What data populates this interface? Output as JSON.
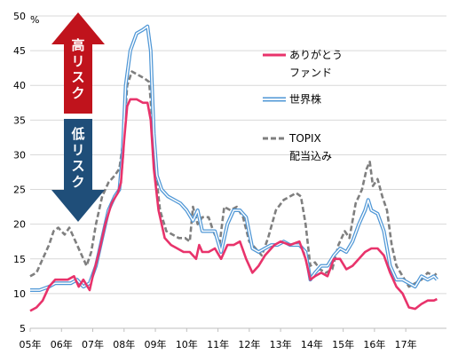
{
  "chart_data": {
    "type": "line",
    "y_unit": "%",
    "ylim": [
      5,
      50
    ],
    "y_ticks": [
      "5",
      "10",
      "15",
      "20",
      "25",
      "30",
      "35",
      "40",
      "45",
      "50"
    ],
    "xlim": [
      2005.0,
      2018.3
    ],
    "x_ticks": [
      {
        "label": "05年",
        "x": 2005
      },
      {
        "label": "06年",
        "x": 2006
      },
      {
        "label": "07年",
        "x": 2007
      },
      {
        "label": "08年",
        "x": 2008
      },
      {
        "label": "09年",
        "x": 2009
      },
      {
        "label": "10年",
        "x": 2010
      },
      {
        "label": "11年",
        "x": 2011
      },
      {
        "label": "12年",
        "x": 2012
      },
      {
        "label": "13年",
        "x": 2013
      },
      {
        "label": "14年",
        "x": 2014
      },
      {
        "label": "15年",
        "x": 2015
      },
      {
        "label": "16年",
        "x": 2016
      },
      {
        "label": "17年",
        "x": 2017
      }
    ],
    "grid": "horizontal",
    "legend_position": "right",
    "arrow_labels": {
      "high": "高リスク",
      "low": "低リスク"
    },
    "series": [
      {
        "name": "ありがとうファンド",
        "legend_lines": [
          "ありがとう",
          "ファンド"
        ],
        "style": "solid",
        "color": "#e8336b",
        "points": [
          [
            2005.0,
            7.5
          ],
          [
            2005.2,
            8.0
          ],
          [
            2005.4,
            9.0
          ],
          [
            2005.6,
            11.0
          ],
          [
            2005.8,
            12.0
          ],
          [
            2006.0,
            12.0
          ],
          [
            2006.2,
            12.0
          ],
          [
            2006.4,
            12.5
          ],
          [
            2006.55,
            11.0
          ],
          [
            2006.7,
            12.0
          ],
          [
            2006.9,
            10.5
          ],
          [
            2007.0,
            12.5
          ],
          [
            2007.2,
            16.0
          ],
          [
            2007.4,
            20.0
          ],
          [
            2007.6,
            23.0
          ],
          [
            2007.8,
            24.5
          ],
          [
            2007.9,
            26.0
          ],
          [
            2008.0,
            32.0
          ],
          [
            2008.1,
            37.0
          ],
          [
            2008.2,
            38.0
          ],
          [
            2008.4,
            38.0
          ],
          [
            2008.6,
            37.5
          ],
          [
            2008.75,
            37.5
          ],
          [
            2008.85,
            35.0
          ],
          [
            2008.95,
            28.0
          ],
          [
            2009.1,
            22.0
          ],
          [
            2009.3,
            18.0
          ],
          [
            2009.5,
            17.0
          ],
          [
            2009.7,
            16.5
          ],
          [
            2009.9,
            16.0
          ],
          [
            2010.1,
            16.0
          ],
          [
            2010.3,
            15.0
          ],
          [
            2010.4,
            17.0
          ],
          [
            2010.5,
            16.0
          ],
          [
            2010.7,
            16.0
          ],
          [
            2010.9,
            16.5
          ],
          [
            2011.1,
            15.0
          ],
          [
            2011.3,
            17.0
          ],
          [
            2011.5,
            17.0
          ],
          [
            2011.7,
            17.5
          ],
          [
            2011.9,
            15.0
          ],
          [
            2012.1,
            13.0
          ],
          [
            2012.3,
            14.0
          ],
          [
            2012.5,
            15.5
          ],
          [
            2012.8,
            17.0
          ],
          [
            2013.0,
            17.5
          ],
          [
            2013.3,
            17.0
          ],
          [
            2013.6,
            17.5
          ],
          [
            2013.8,
            15.0
          ],
          [
            2013.95,
            12.0
          ],
          [
            2014.1,
            12.5
          ],
          [
            2014.3,
            13.0
          ],
          [
            2014.5,
            12.5
          ],
          [
            2014.7,
            15.0
          ],
          [
            2014.9,
            15.0
          ],
          [
            2015.1,
            13.5
          ],
          [
            2015.3,
            14.0
          ],
          [
            2015.5,
            15.0
          ],
          [
            2015.7,
            16.0
          ],
          [
            2015.9,
            16.5
          ],
          [
            2016.1,
            16.5
          ],
          [
            2016.3,
            15.5
          ],
          [
            2016.5,
            13.0
          ],
          [
            2016.7,
            11.0
          ],
          [
            2016.9,
            10.0
          ],
          [
            2017.1,
            8.0
          ],
          [
            2017.3,
            7.8
          ],
          [
            2017.5,
            8.5
          ],
          [
            2017.7,
            9.0
          ],
          [
            2017.9,
            9.0
          ],
          [
            2018.0,
            9.2
          ]
        ]
      },
      {
        "name": "世界株",
        "legend_lines": [
          "世界株"
        ],
        "style": "double",
        "color": "#4f97d6",
        "points": [
          [
            2005.0,
            10.5
          ],
          [
            2005.3,
            10.5
          ],
          [
            2005.6,
            11.0
          ],
          [
            2005.8,
            11.5
          ],
          [
            2006.0,
            11.5
          ],
          [
            2006.3,
            11.5
          ],
          [
            2006.5,
            12.0
          ],
          [
            2006.7,
            11.0
          ],
          [
            2006.9,
            11.5
          ],
          [
            2007.1,
            14.0
          ],
          [
            2007.3,
            18.0
          ],
          [
            2007.5,
            22.0
          ],
          [
            2007.7,
            24.0
          ],
          [
            2007.85,
            25.0
          ],
          [
            2007.95,
            30.0
          ],
          [
            2008.05,
            40.0
          ],
          [
            2008.2,
            45.0
          ],
          [
            2008.4,
            47.5
          ],
          [
            2008.6,
            48.0
          ],
          [
            2008.75,
            48.5
          ],
          [
            2008.85,
            45.0
          ],
          [
            2008.95,
            33.0
          ],
          [
            2009.05,
            27.0
          ],
          [
            2009.2,
            25.0
          ],
          [
            2009.4,
            24.0
          ],
          [
            2009.6,
            23.5
          ],
          [
            2009.8,
            23.0
          ],
          [
            2010.0,
            22.0
          ],
          [
            2010.2,
            20.5
          ],
          [
            2010.35,
            22.0
          ],
          [
            2010.5,
            19.0
          ],
          [
            2010.7,
            19.0
          ],
          [
            2010.9,
            19.0
          ],
          [
            2011.1,
            16.0
          ],
          [
            2011.3,
            20.0
          ],
          [
            2011.5,
            22.0
          ],
          [
            2011.7,
            22.0
          ],
          [
            2011.9,
            21.0
          ],
          [
            2012.1,
            16.5
          ],
          [
            2012.3,
            16.0
          ],
          [
            2012.5,
            16.5
          ],
          [
            2012.7,
            17.0
          ],
          [
            2012.9,
            17.0
          ],
          [
            2013.1,
            17.5
          ],
          [
            2013.3,
            17.0
          ],
          [
            2013.6,
            17.0
          ],
          [
            2013.8,
            16.0
          ],
          [
            2013.95,
            12.0
          ],
          [
            2014.1,
            13.0
          ],
          [
            2014.3,
            14.0
          ],
          [
            2014.5,
            14.0
          ],
          [
            2014.7,
            15.5
          ],
          [
            2014.9,
            16.5
          ],
          [
            2015.1,
            16.0
          ],
          [
            2015.3,
            17.5
          ],
          [
            2015.5,
            20.0
          ],
          [
            2015.7,
            22.0
          ],
          [
            2015.8,
            23.5
          ],
          [
            2015.9,
            22.0
          ],
          [
            2016.1,
            21.5
          ],
          [
            2016.3,
            19.0
          ],
          [
            2016.5,
            14.0
          ],
          [
            2016.7,
            12.0
          ],
          [
            2016.9,
            12.0
          ],
          [
            2017.1,
            11.5
          ],
          [
            2017.3,
            11.0
          ],
          [
            2017.5,
            12.5
          ],
          [
            2017.7,
            12.0
          ],
          [
            2017.9,
            12.5
          ],
          [
            2018.0,
            12.0
          ]
        ]
      },
      {
        "name": "TOPIX配当込み",
        "legend_lines": [
          "TOPIX",
          "配当込み"
        ],
        "style": "dashed",
        "color": "#7f7f7f",
        "points": [
          [
            2005.0,
            12.5
          ],
          [
            2005.2,
            13.0
          ],
          [
            2005.4,
            15.0
          ],
          [
            2005.6,
            17.0
          ],
          [
            2005.75,
            19.0
          ],
          [
            2005.9,
            19.5
          ],
          [
            2006.1,
            18.5
          ],
          [
            2006.25,
            19.5
          ],
          [
            2006.45,
            17.5
          ],
          [
            2006.6,
            16.0
          ],
          [
            2006.8,
            14.0
          ],
          [
            2006.95,
            16.0
          ],
          [
            2007.1,
            20.0
          ],
          [
            2007.3,
            24.0
          ],
          [
            2007.5,
            26.0
          ],
          [
            2007.7,
            27.0
          ],
          [
            2007.85,
            28.0
          ],
          [
            2008.0,
            33.0
          ],
          [
            2008.1,
            40.0
          ],
          [
            2008.25,
            42.0
          ],
          [
            2008.45,
            41.5
          ],
          [
            2008.65,
            41.0
          ],
          [
            2008.8,
            40.5
          ],
          [
            2008.9,
            35.0
          ],
          [
            2009.0,
            28.0
          ],
          [
            2009.15,
            22.0
          ],
          [
            2009.35,
            19.0
          ],
          [
            2009.55,
            18.5
          ],
          [
            2009.75,
            18.0
          ],
          [
            2009.95,
            18.0
          ],
          [
            2010.1,
            17.5
          ],
          [
            2010.2,
            22.5
          ],
          [
            2010.35,
            20.0
          ],
          [
            2010.5,
            21.0
          ],
          [
            2010.7,
            21.0
          ],
          [
            2010.85,
            19.0
          ],
          [
            2011.05,
            17.0
          ],
          [
            2011.2,
            22.5
          ],
          [
            2011.4,
            22.0
          ],
          [
            2011.6,
            22.5
          ],
          [
            2011.8,
            21.0
          ],
          [
            2012.0,
            17.5
          ],
          [
            2012.2,
            16.5
          ],
          [
            2012.4,
            15.5
          ],
          [
            2012.6,
            18.0
          ],
          [
            2012.85,
            22.0
          ],
          [
            2013.1,
            23.5
          ],
          [
            2013.3,
            24.0
          ],
          [
            2013.5,
            24.5
          ],
          [
            2013.65,
            24.0
          ],
          [
            2013.8,
            20.0
          ],
          [
            2013.95,
            14.0
          ],
          [
            2014.1,
            14.5
          ],
          [
            2014.25,
            13.5
          ],
          [
            2014.45,
            13.0
          ],
          [
            2014.65,
            13.5
          ],
          [
            2014.85,
            17.0
          ],
          [
            2015.05,
            19.0
          ],
          [
            2015.2,
            18.0
          ],
          [
            2015.4,
            23.0
          ],
          [
            2015.6,
            25.0
          ],
          [
            2015.75,
            28.0
          ],
          [
            2015.85,
            29.0
          ],
          [
            2015.95,
            25.5
          ],
          [
            2016.1,
            26.5
          ],
          [
            2016.25,
            24.0
          ],
          [
            2016.4,
            22.0
          ],
          [
            2016.55,
            17.0
          ],
          [
            2016.7,
            14.0
          ],
          [
            2016.9,
            12.5
          ],
          [
            2017.1,
            11.0
          ],
          [
            2017.3,
            11.5
          ],
          [
            2017.5,
            12.0
          ],
          [
            2017.7,
            13.0
          ],
          [
            2017.9,
            12.5
          ],
          [
            2018.0,
            13.0
          ]
        ]
      }
    ]
  }
}
